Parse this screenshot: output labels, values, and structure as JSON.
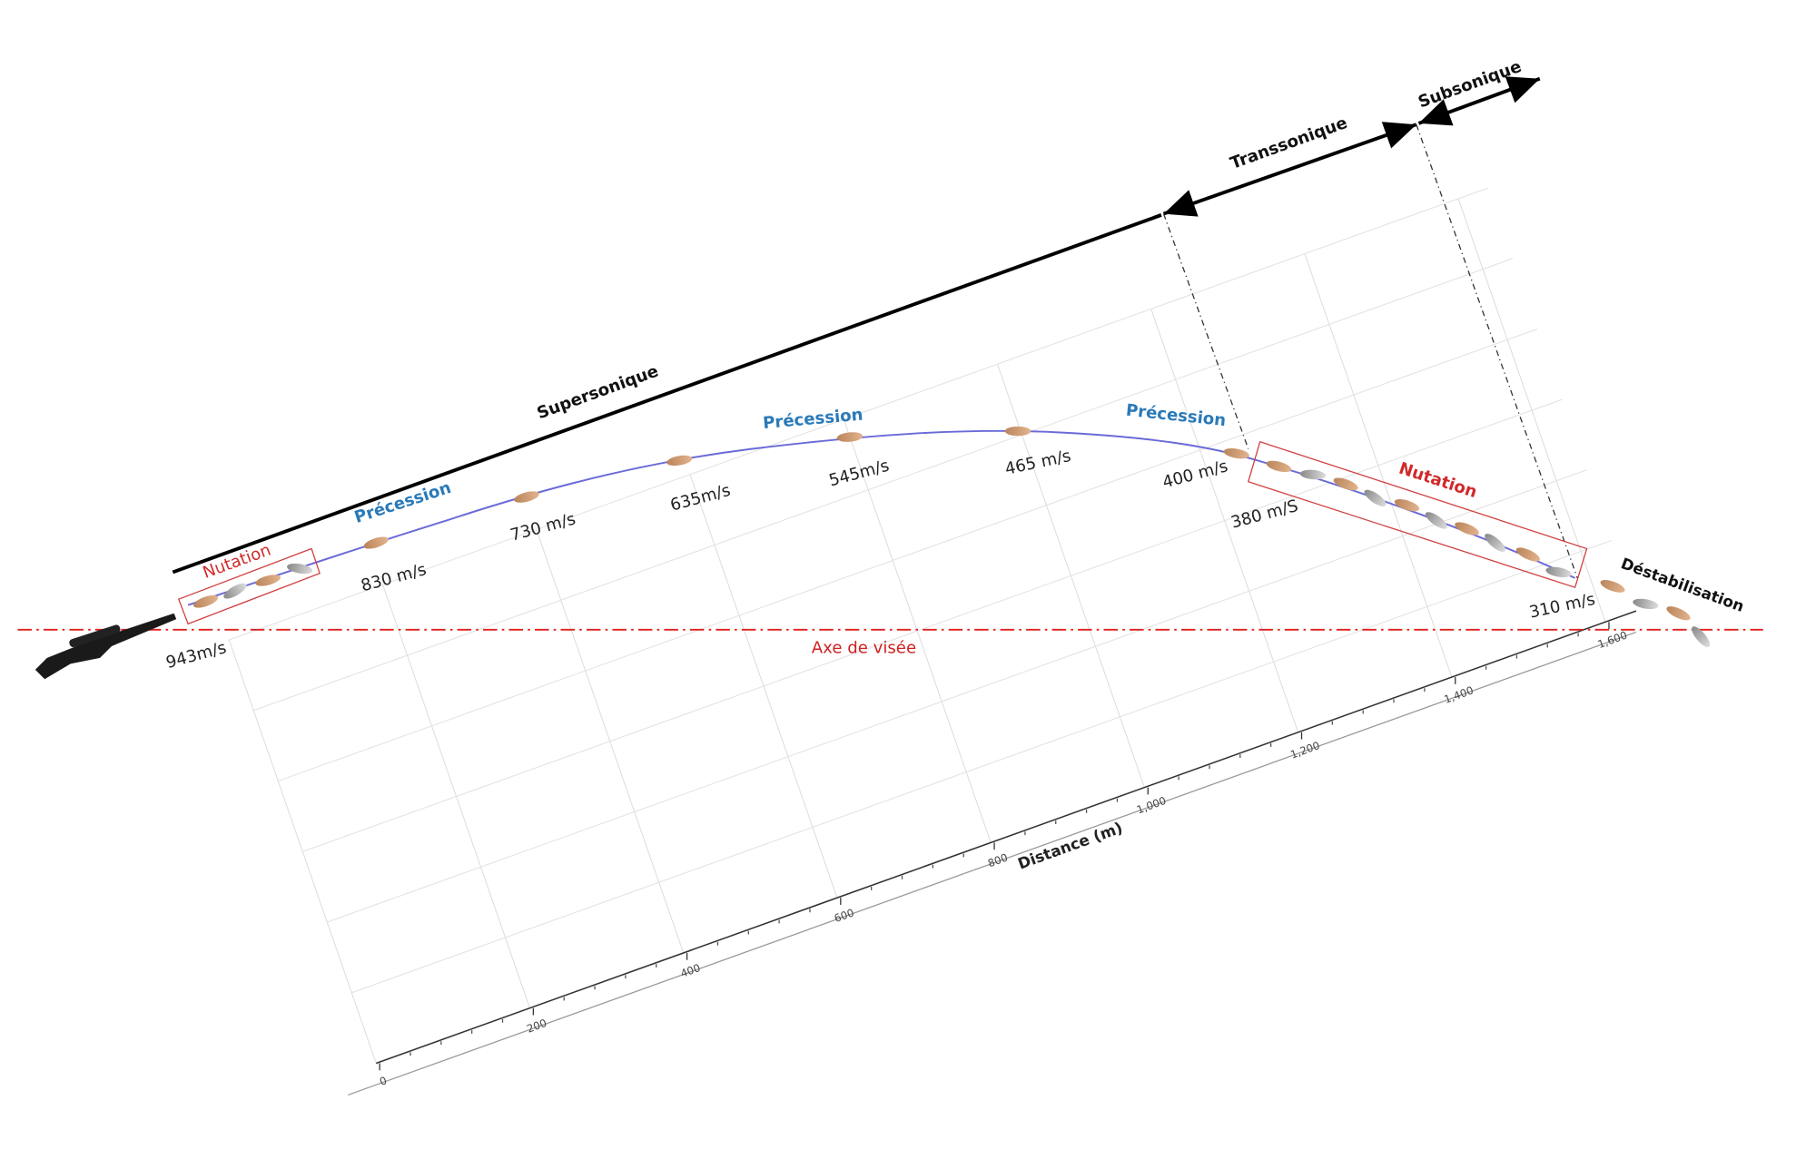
{
  "regimes": {
    "supersonic": "Supersonique",
    "transonic": "Transsonique",
    "subsonic": "Subsonique"
  },
  "phases": {
    "nutation_start": "Nutation",
    "precession_1": "Précession",
    "precession_2": "Précession",
    "precession_3": "Précession",
    "nutation_end": "Nutation",
    "destabilization": "Déstabilisation"
  },
  "speeds": [
    "943m/s",
    "830 m/s",
    "730 m/s",
    "635m/s",
    "545m/s",
    "465 m/s",
    "400 m/s",
    "380 m/S",
    "310 m/s"
  ],
  "line_of_sight": "Axe de visée",
  "axis": {
    "title": "Distance (m)",
    "ticks": [
      "0",
      "200",
      "400",
      "600",
      "800",
      "1,000",
      "1,200",
      "1,400",
      "1,600"
    ]
  }
}
